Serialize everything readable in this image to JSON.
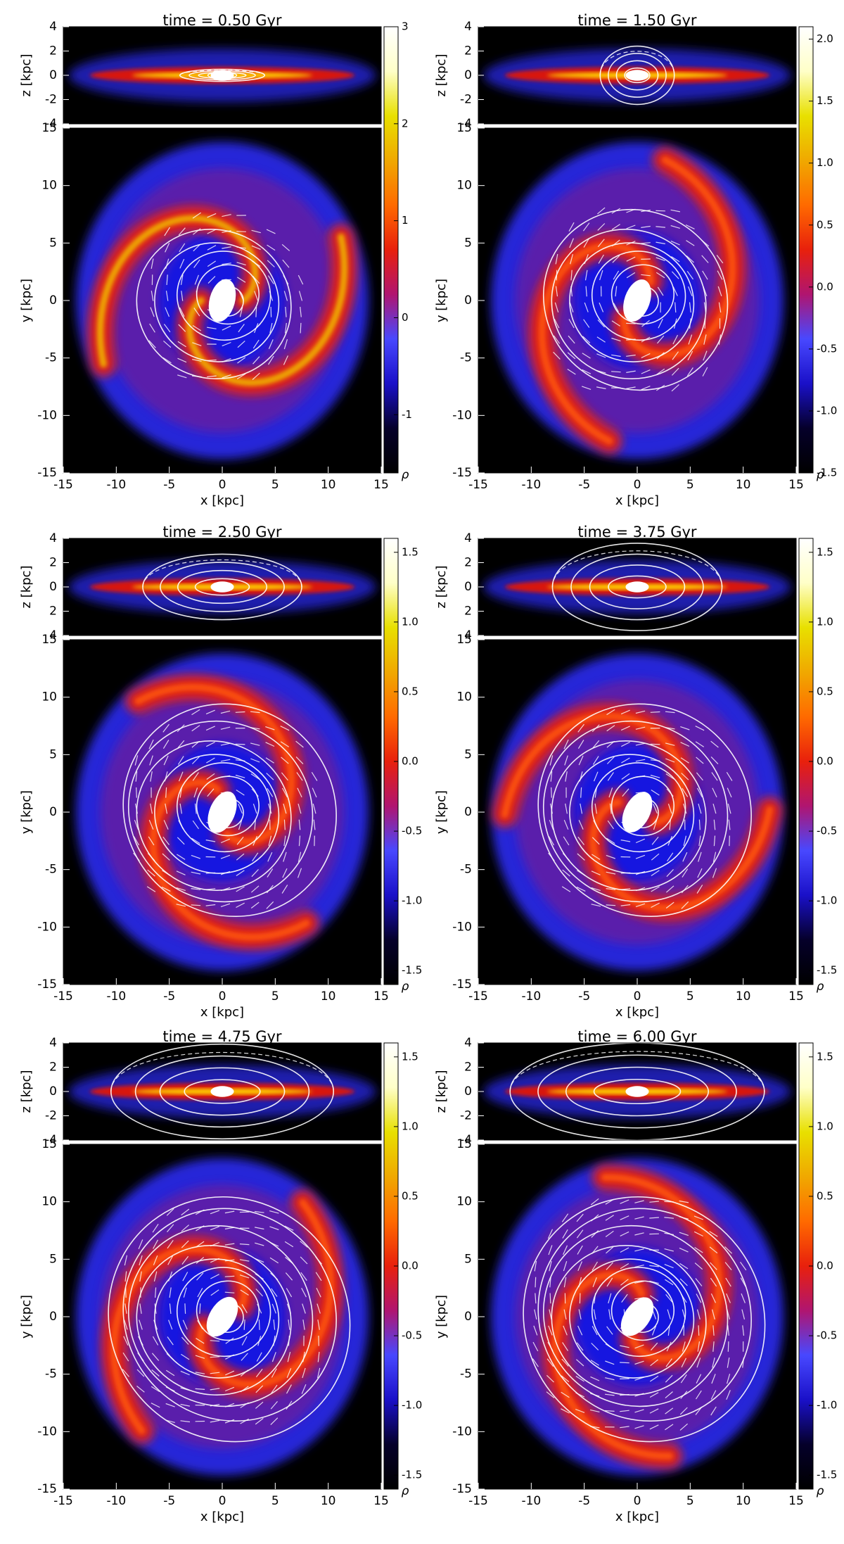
{
  "chart_data": [
    {
      "type": "heatmap",
      "title": "time = 0.50 Gyr",
      "edge_on": {
        "ylabel": "z [kpc]",
        "ylim": [
          -4,
          4
        ],
        "yticks": [
          "4",
          "2",
          "0",
          "-2",
          "-4"
        ]
      },
      "face_on": {
        "xlabel": "x [kpc]",
        "ylabel": "y [kpc]",
        "xlim": [
          -15,
          15
        ],
        "ylim": [
          -15,
          15
        ],
        "xticks": [
          "-15",
          "-10",
          "-5",
          "0",
          "5",
          "10",
          "15"
        ],
        "yticks": [
          "15",
          "10",
          "5",
          "0",
          "-5",
          "-10",
          "-15"
        ]
      },
      "colorbar": {
        "label": "ρ",
        "range": [
          -1.6,
          3.0
        ],
        "ticks": [
          "3",
          "2",
          "1",
          "0",
          "-1"
        ]
      },
      "overlays": [
        "contours",
        "vectors"
      ]
    },
    {
      "type": "heatmap",
      "title": "time = 1.50 Gyr",
      "edge_on": {
        "ylabel": "z [kpc]",
        "ylim": [
          -4,
          4
        ],
        "yticks": [
          "4",
          "2",
          "0",
          "-2",
          "-4"
        ]
      },
      "face_on": {
        "xlabel": "x [kpc]",
        "ylabel": "y [kpc]",
        "xlim": [
          -15,
          15
        ],
        "ylim": [
          -15,
          15
        ],
        "xticks": [
          "-15",
          "-10",
          "-5",
          "0",
          "5",
          "10",
          "15"
        ],
        "yticks": [
          "15",
          "10",
          "5",
          "0",
          "-5",
          "-10",
          "-15"
        ]
      },
      "colorbar": {
        "label": "ρ",
        "range": [
          -1.5,
          2.1
        ],
        "ticks": [
          "2.0",
          "1.5",
          "1.0",
          "0.5",
          "0.0",
          "-0.5",
          "-1.0",
          "-1.5"
        ]
      },
      "overlays": [
        "contours",
        "vectors"
      ]
    },
    {
      "type": "heatmap",
      "title": "time = 2.50 Gyr",
      "edge_on": {
        "ylabel": "z [kpc]",
        "ylim": [
          -4,
          4
        ],
        "yticks": [
          "4",
          "2",
          "0",
          "2",
          "4"
        ]
      },
      "face_on": {
        "xlabel": "x [kpc]",
        "ylabel": "y [kpc]",
        "xlim": [
          -15,
          15
        ],
        "ylim": [
          -15,
          15
        ],
        "xticks": [
          "-15",
          "-10",
          "-5",
          "0",
          "5",
          "10",
          "15"
        ],
        "yticks": [
          "15",
          "10",
          "5",
          "0",
          "-5",
          "-10",
          "-15"
        ]
      },
      "colorbar": {
        "label": "ρ",
        "range": [
          -1.6,
          1.6
        ],
        "ticks": [
          "1.5",
          "1.0",
          "0.5",
          "0.0",
          "-0.5",
          "-1.0",
          "-1.5"
        ]
      },
      "overlays": [
        "contours",
        "vectors"
      ]
    },
    {
      "type": "heatmap",
      "title": "time = 3.75 Gyr",
      "edge_on": {
        "ylabel": "z [kpc]",
        "ylim": [
          -4,
          4
        ],
        "yticks": [
          "4",
          "2",
          "0",
          "2",
          "4"
        ]
      },
      "face_on": {
        "xlabel": "x [kpc]",
        "ylabel": "y [kpc]",
        "xlim": [
          -15,
          15
        ],
        "ylim": [
          -15,
          15
        ],
        "xticks": [
          "-15",
          "-10",
          "-5",
          "0",
          "5",
          "10",
          "15"
        ],
        "yticks": [
          "15",
          "10",
          "5",
          "0",
          "-5",
          "-10",
          "-15"
        ]
      },
      "colorbar": {
        "label": "ρ",
        "range": [
          -1.6,
          1.6
        ],
        "ticks": [
          "1.5",
          "1.0",
          "0.5",
          "0.0",
          "-0.5",
          "-1.0",
          "-1.5"
        ]
      },
      "overlays": [
        "contours",
        "vectors"
      ]
    },
    {
      "type": "heatmap",
      "title": "time = 4.75 Gyr",
      "edge_on": {
        "ylabel": "z [kpc]",
        "ylim": [
          -4,
          4
        ],
        "yticks": [
          "4",
          "2",
          "0",
          "-2",
          "-4"
        ]
      },
      "face_on": {
        "xlabel": "x [kpc]",
        "ylabel": "y [kpc]",
        "xlim": [
          -15,
          15
        ],
        "ylim": [
          -15,
          15
        ],
        "xticks": [
          "-15",
          "-10",
          "-5",
          "0",
          "5",
          "10",
          "15"
        ],
        "yticks": [
          "15",
          "10",
          "5",
          "0",
          "-5",
          "-10",
          "-15"
        ]
      },
      "colorbar": {
        "label": "ρ",
        "range": [
          -1.6,
          1.6
        ],
        "ticks": [
          "1.5",
          "1.0",
          "0.5",
          "0.0",
          "-0.5",
          "-1.0",
          "-1.5"
        ]
      },
      "overlays": [
        "contours",
        "vectors"
      ]
    },
    {
      "type": "heatmap",
      "title": "time = 6.00 Gyr",
      "edge_on": {
        "ylabel": "z [kpc]",
        "ylim": [
          -4,
          4
        ],
        "yticks": [
          "4",
          "2",
          "0",
          "-2",
          "-4"
        ]
      },
      "face_on": {
        "xlabel": "x [kpc]",
        "ylabel": "y [kpc]",
        "xlim": [
          -15,
          15
        ],
        "ylim": [
          -15,
          15
        ],
        "xticks": [
          "-15",
          "-10",
          "-5",
          "0",
          "5",
          "10",
          "15"
        ],
        "yticks": [
          "15",
          "10",
          "5",
          "0",
          "-5",
          "-10",
          "-15"
        ]
      },
      "colorbar": {
        "label": "ρ",
        "range": [
          -1.6,
          1.6
        ],
        "ticks": [
          "1.5",
          "1.0",
          "0.5",
          "0.0",
          "-0.5",
          "-1.0",
          "-1.5"
        ]
      },
      "overlays": [
        "contours",
        "vectors"
      ]
    }
  ],
  "colors": {
    "background": "#000000",
    "colormap": [
      "#000000",
      "#05002a",
      "#1a10c8",
      "#4848ff",
      "#b01570",
      "#e8200c",
      "#ff6a00",
      "#f0a800",
      "#e8e000",
      "#ffffc8",
      "#ffffff"
    ],
    "overlay": "#ffffff"
  }
}
